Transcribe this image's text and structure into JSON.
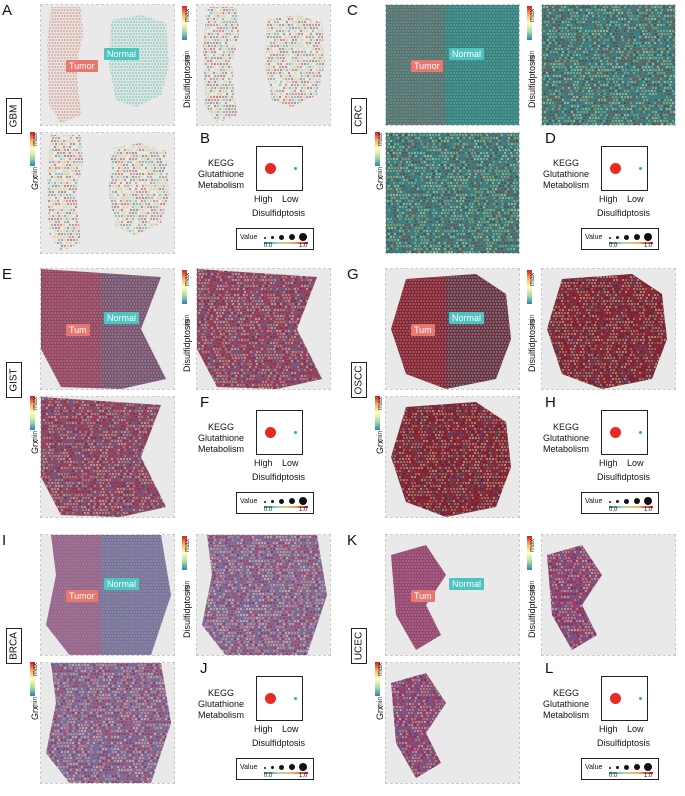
{
  "colors": {
    "tumor": "#e7776f",
    "normal": "#4ec4be",
    "dot_high": "#ea2a22",
    "dot_low": "#31b4a6",
    "colorbar": [
      "#d7191c",
      "#fdae61",
      "#ffffbf",
      "#abdda4",
      "#2b83ba"
    ]
  },
  "shared": {
    "disulfidptosis_label": "Disulfidptosis",
    "grx_label": "Grx",
    "max": "max",
    "min": "min",
    "kegg_line1": "KEGG",
    "kegg_line2": "Glutathione",
    "kegg_line3": "Metabolism",
    "high": "High",
    "low": "Low",
    "x_title": "Disulfidptosis",
    "legend_title": "Value",
    "legend_min": "0.0",
    "legend_max": "1.0",
    "tumor": "Tumor",
    "normal": "Normal",
    "tumor_partial": "Tum"
  },
  "blocks": [
    {
      "letter_top": "A",
      "letter_dot": "B",
      "cancer": "GBM",
      "tissue_bg": "#e2e4e0",
      "tumor_label": "Tumor"
    },
    {
      "letter_top": "C",
      "letter_dot": "D",
      "cancer": "CRC",
      "tissue_bg": "#3f7e7a",
      "tumor_label": "Tumor"
    },
    {
      "letter_top": "E",
      "letter_dot": "F",
      "cancer": "GIST",
      "tissue_bg": "#8a4a6a",
      "tumor_label": "Tum"
    },
    {
      "letter_top": "G",
      "letter_dot": "H",
      "cancer": "OSCC",
      "tissue_bg": "#7a2a3a",
      "tumor_label": "Tum"
    },
    {
      "letter_top": "I",
      "letter_dot": "J",
      "cancer": "BRCA",
      "tissue_bg": "#8a6a96",
      "tumor_label": "Tumor"
    },
    {
      "letter_top": "K",
      "letter_dot": "L",
      "cancer": "UCEC",
      "tissue_bg": "#8a4a7a",
      "tumor_label": "Tum"
    }
  ]
}
